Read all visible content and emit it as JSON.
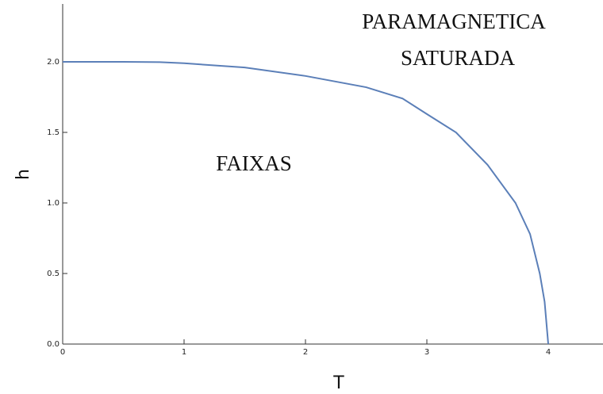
{
  "chart_data": {
    "type": "line",
    "x_label": "T",
    "y_label": "h",
    "annotations": [
      "PARAMAGNETICA",
      "SATURADA",
      "FAIXAS"
    ],
    "series": [
      {
        "color": "#5b7fb8",
        "x": [
          0,
          0.5,
          0.8,
          1,
          1.5,
          2,
          2.5,
          2.8,
          3,
          3.24,
          3.5,
          3.73,
          3.85,
          3.93,
          3.97,
          4.0
        ],
        "values": [
          2,
          2,
          1.998,
          1.99,
          1.96,
          1.9,
          1.82,
          1.74,
          1.63,
          1.5,
          1.27,
          1.0,
          0.78,
          0.5,
          0.3,
          0
        ]
      }
    ],
    "xlim": [
      0,
      4.45
    ],
    "ylim": [
      0,
      2.41
    ],
    "xticks": [
      0,
      1,
      2,
      3,
      4
    ],
    "yticks": [
      {
        "value": 0,
        "label": "0.0"
      },
      0.5,
      {
        "value": 1,
        "label": "1.0"
      },
      1.5,
      {
        "value": 2,
        "label": "2.0"
      }
    ]
  }
}
